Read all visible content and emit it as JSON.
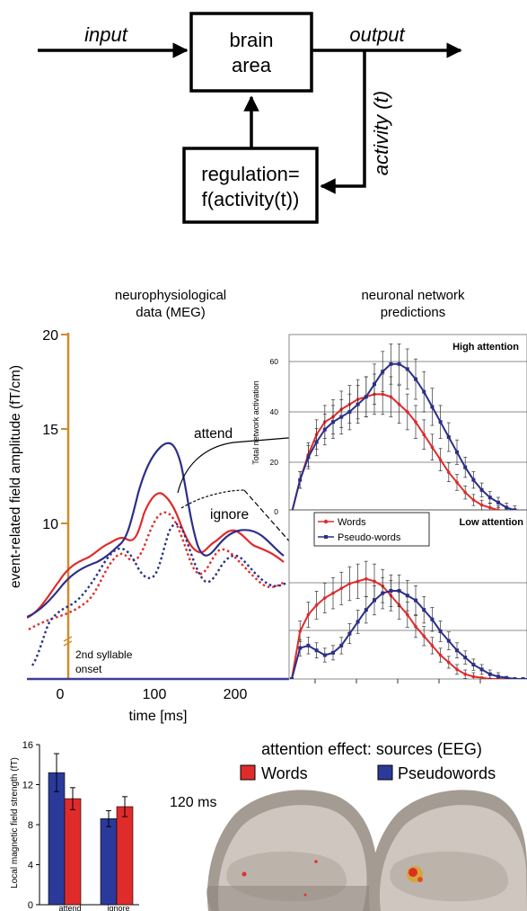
{
  "top_diagram": {
    "input": "input",
    "output": "output",
    "box_line1": "brain",
    "box_line2": "area",
    "activity": "activity (t)",
    "reg_line1": "regulation=",
    "reg_line2": "f(activity(t))"
  },
  "meg": {
    "title1": "neurophysiological",
    "title2": "data (MEG)",
    "ylabel": "event-related field amplitude (fT/cm)",
    "yticks": [
      "20",
      "15",
      "10"
    ],
    "xticks": [
      "0",
      "100",
      "200"
    ],
    "xlabel": "time [ms]",
    "attend": "attend",
    "ignore": "ignore",
    "onset1": "2nd syllable",
    "onset2": "onset",
    "colors": {
      "words": "#e02b2b",
      "pseudo": "#2b2f86",
      "onset_line": "#d18a2c",
      "axis": "#3b3f99"
    }
  },
  "network": {
    "title1": "neuronal network",
    "title2": "predictions",
    "ylabel": "Total network activation",
    "high": "High attention",
    "low": "Low attention",
    "yticks": [
      "60",
      "40",
      "20",
      "0"
    ],
    "legend_words": "Words",
    "legend_pseudo": "Pseudo-words"
  },
  "bar": {
    "ylabel": "Local magnetic field strength (fT)",
    "yticks": [
      "16",
      "12",
      "8",
      "4",
      "0"
    ],
    "xticks": [
      "attend",
      "ignore"
    ]
  },
  "eeg": {
    "title": "attention effect: sources (EEG)",
    "words": "Words",
    "pseudo": "Pseudowords",
    "time": "120 ms"
  },
  "chart_data": [
    {
      "type": "bar",
      "categories": [
        "attend",
        "ignore"
      ],
      "series": [
        {
          "name": "Pseudowords",
          "values": [
            13.2,
            8.6
          ],
          "errors": [
            1.9,
            0.8
          ]
        },
        {
          "name": "Words",
          "values": [
            10.6,
            9.8
          ],
          "errors": [
            1.1,
            1.0
          ]
        }
      ],
      "ylabel": "Local magnetic field strength (fT)",
      "ylim": [
        0,
        16
      ]
    },
    {
      "type": "line",
      "title": "High attention",
      "ylabel": "Total network activation",
      "ylim": [
        0,
        70
      ],
      "x_index": [
        0,
        1,
        2,
        3,
        4,
        5,
        6,
        7,
        8,
        9,
        10,
        11,
        12,
        13,
        14,
        15,
        16,
        17,
        18,
        19,
        20,
        21,
        22,
        23,
        24,
        25,
        26,
        27,
        28,
        29
      ],
      "series": [
        {
          "name": "Words",
          "values": [
            0,
            13,
            23,
            31,
            36,
            38,
            41,
            43,
            45,
            46,
            47,
            47,
            46,
            43,
            40,
            36,
            31,
            26,
            21,
            16,
            12,
            8,
            5,
            3,
            2,
            1,
            0.5,
            0,
            0,
            0
          ]
        },
        {
          "name": "Pseudo-words",
          "values": [
            0,
            13,
            22,
            28,
            33,
            36,
            38,
            40,
            43,
            46,
            51,
            56,
            59,
            59,
            57,
            53,
            48,
            42,
            36,
            30,
            24,
            18,
            13,
            9,
            6,
            4,
            2,
            1,
            0.5,
            0
          ]
        }
      ]
    },
    {
      "type": "line",
      "title": "Low attention",
      "ylabel": "Total network activation",
      "ylim": [
        0,
        70
      ],
      "x_index": [
        0,
        1,
        2,
        3,
        4,
        5,
        6,
        7,
        8,
        9,
        10,
        11,
        12,
        13,
        14,
        15,
        16,
        17,
        18,
        19,
        20,
        21,
        22,
        23,
        24,
        25,
        26,
        27,
        28,
        29
      ],
      "series": [
        {
          "name": "Words",
          "values": [
            0,
            20,
            27,
            31,
            34,
            36,
            38,
            40,
            41,
            42,
            41,
            39,
            35,
            31,
            27,
            22,
            18,
            14,
            10,
            7,
            4,
            2,
            1,
            0.5,
            0,
            0,
            0,
            0,
            0,
            0
          ]
        },
        {
          "name": "Pseudo-words",
          "values": [
            0,
            13,
            14,
            12,
            10,
            11,
            14,
            19,
            24,
            29,
            33,
            36,
            37,
            37,
            35,
            33,
            29,
            25,
            20,
            16,
            12,
            9,
            6,
            4,
            2,
            1,
            0.5,
            0,
            0,
            0
          ]
        }
      ]
    }
  ]
}
